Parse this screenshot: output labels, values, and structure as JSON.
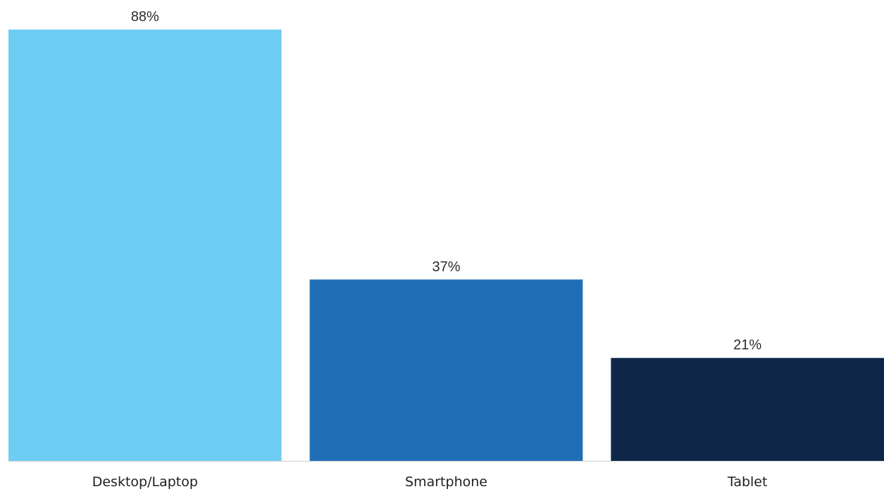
{
  "chart_data": {
    "type": "bar",
    "categories": [
      "Desktop/Laptop",
      "Smartphone",
      "Tablet"
    ],
    "values": [
      88,
      37,
      21
    ],
    "value_labels": [
      "88%",
      "37%",
      "21%"
    ],
    "colors": [
      "#6ECDF2",
      "#206FB6",
      "#0E2748"
    ],
    "axis_color": "#CCCCCC",
    "title": "",
    "xlabel": "",
    "ylabel": "",
    "ylim": [
      0,
      88
    ],
    "grid": false,
    "legend": "none"
  }
}
